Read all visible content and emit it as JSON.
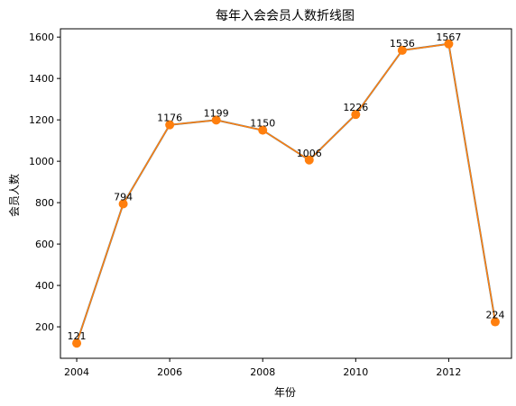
{
  "colors": {
    "line_under": "#1f77b4",
    "line_over": "#ff7f0e",
    "marker": "#ff7f0e",
    "axes": "#000000",
    "background": "#ffffff"
  },
  "chart_data": {
    "type": "line",
    "title": "每年入会会员人数折线图",
    "xlabel": "年份",
    "ylabel": "会员人数",
    "x": [
      2004,
      2005,
      2006,
      2007,
      2008,
      2009,
      2010,
      2011,
      2012,
      2013
    ],
    "values": [
      121,
      794,
      1176,
      1199,
      1150,
      1006,
      1226,
      1536,
      1567,
      224
    ],
    "data_labels": [
      "121",
      "794",
      "1176",
      "1199",
      "1150",
      "1006",
      "1226",
      "1536",
      "1567",
      "224"
    ],
    "xticks": [
      2004,
      2006,
      2008,
      2010,
      2012
    ],
    "xtick_labels": [
      "2004",
      "2006",
      "2008",
      "2010",
      "2012"
    ],
    "yticks": [
      200,
      400,
      600,
      800,
      1000,
      1200,
      1400,
      1600
    ],
    "ytick_labels": [
      "200",
      "400",
      "600",
      "800",
      "1000",
      "1200",
      "1400",
      "1600"
    ],
    "xlim": [
      2003.65,
      2013.35
    ],
    "ylim": [
      48,
      1640
    ],
    "grid": false,
    "legend": "none",
    "markers": true
  }
}
